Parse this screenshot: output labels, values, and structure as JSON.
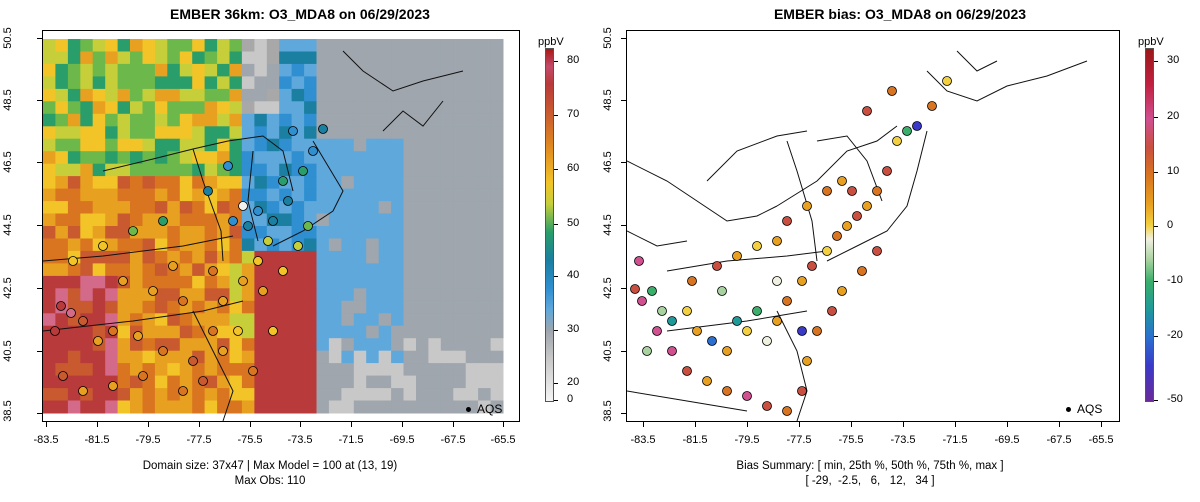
{
  "left": {
    "title": "EMBER 36km: O3_MDA8 on 06/29/2023",
    "y_ticks": [
      "50.5",
      "48.5",
      "46.5",
      "44.5",
      "42.5",
      "40.5",
      "38.5"
    ],
    "x_ticks": [
      "-83.5",
      "-81.5",
      "-79.5",
      "-77.5",
      "-75.5",
      "-73.5",
      "-71.5",
      "-69.5",
      "-67.5",
      "-65.5"
    ],
    "legend": "AQS",
    "colorbar_unit": "ppbV",
    "colorbar_ticks": [
      "80",
      "70",
      "60",
      "50",
      "40",
      "30",
      "20",
      "0"
    ],
    "footer_line1": "Domain size: 37x47 | Max Model = 100 at (13, 19)",
    "footer_line2": "Max Obs: 110",
    "colors": [
      "#f0f0f0",
      "#c8c8c8",
      "#a8a8a8",
      "#9fa6ad",
      "#5fa8dc",
      "#2f8fd0",
      "#1a7fa0",
      "#2a9e6a",
      "#6cb84a",
      "#c6cf3a",
      "#f2c428",
      "#e8a020",
      "#d97520",
      "#c95a30",
      "#b83a3a",
      "#d46a8a"
    ]
  },
  "right": {
    "title": "EMBER bias: O3_MDA8 on 06/29/2023",
    "y_ticks": [
      "50.5",
      "48.5",
      "46.5",
      "44.5",
      "42.5",
      "40.5",
      "38.5"
    ],
    "x_ticks": [
      "-83.5",
      "-81.5",
      "-79.5",
      "-77.5",
      "-75.5",
      "-73.5",
      "-71.5",
      "-69.5",
      "-67.5",
      "-65.5"
    ],
    "legend": "AQS",
    "colorbar_unit": "ppbV",
    "colorbar_ticks": [
      "30",
      "20",
      "10",
      "0",
      "-10",
      "-20",
      "-50"
    ],
    "footer_line1": "Bias Summary: [ min, 25th %, 50th %, 75th %, max ]",
    "footer_line2": "[ -29,  -2.5,   6,   12,   34 ]",
    "colors": [
      "#6a2a9a",
      "#3a3ac8",
      "#2b6fd0",
      "#1f9a9a",
      "#3aae6a",
      "#a8d2a0",
      "#f0f0e0",
      "#f2d040",
      "#e8a020",
      "#d97520",
      "#c95040",
      "#d05090",
      "#a01818"
    ]
  }
}
